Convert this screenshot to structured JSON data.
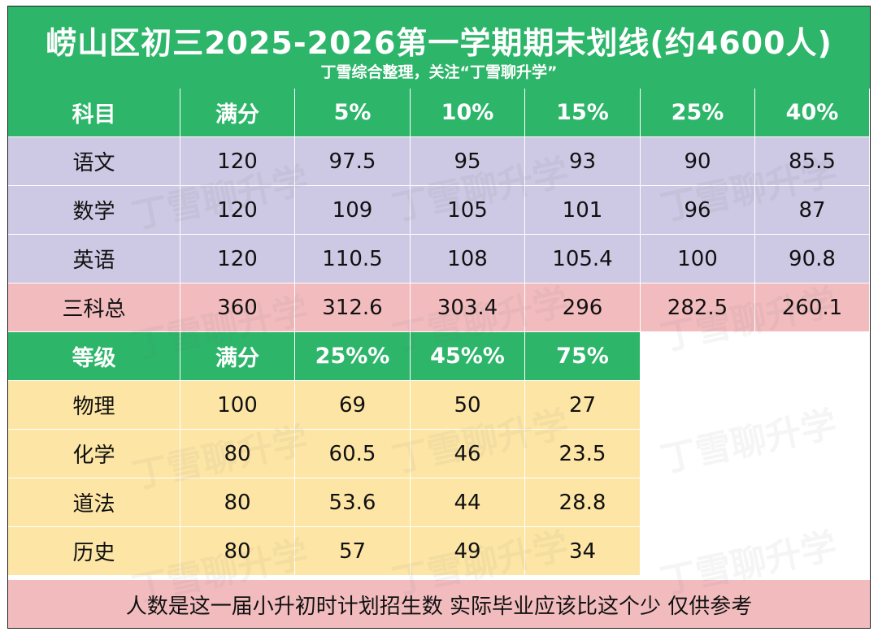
{
  "header": {
    "title": "崂山区初三2025-2026第一学期期末划线(约4600人)",
    "subtitle": "丁雪综合整理，关注“丁雪聊升学”"
  },
  "watermark": "丁雪聊升学",
  "table1": {
    "headers": [
      "科目",
      "满分",
      "5%",
      "10%",
      "15%",
      "25%",
      "40%"
    ],
    "rows": [
      [
        "语文",
        "120",
        "97.5",
        "95",
        "93",
        "90",
        "85.5"
      ],
      [
        "数学",
        "120",
        "109",
        "105",
        "101",
        "96",
        "87"
      ],
      [
        "英语",
        "120",
        "110.5",
        "108",
        "105.4",
        "100",
        "90.8"
      ],
      [
        "三科总",
        "360",
        "312.6",
        "303.4",
        "296",
        "282.5",
        "260.1"
      ]
    ]
  },
  "table2": {
    "headers": [
      "等级",
      "满分",
      "25%%",
      "45%%",
      "75%"
    ],
    "rows": [
      [
        "物理",
        "100",
        "69",
        "50",
        "27"
      ],
      [
        "化学",
        "80",
        "60.5",
        "46",
        "23.5"
      ],
      [
        "道法",
        "80",
        "53.6",
        "44",
        "28.8"
      ],
      [
        "历史",
        "80",
        "57",
        "49",
        "34"
      ]
    ]
  },
  "footer": "人数是这一届小升初时计划招生数 实际毕业应该比这个少 仅供参考",
  "colors": {
    "header_green": "#2db56a",
    "subject_purple": "#cdc8e3",
    "total_pink": "#f2bcbf",
    "level_yellow": "#fde6a5"
  }
}
